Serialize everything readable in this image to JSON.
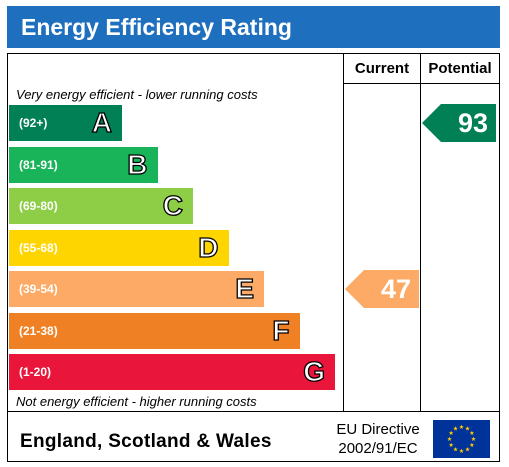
{
  "header": {
    "title": "Energy Efficiency Rating"
  },
  "columns": {
    "current": "Current",
    "potential": "Potential"
  },
  "notes": {
    "top": "Very energy efficient - lower running costs",
    "bottom": "Not energy efficient - higher running costs"
  },
  "chart_data": {
    "type": "bar",
    "bands": [
      {
        "range": "(92+)",
        "letter": "A",
        "color": "#008054"
      },
      {
        "range": "(81-91)",
        "letter": "B",
        "color": "#19b459"
      },
      {
        "range": "(69-80)",
        "letter": "C",
        "color": "#8dce46"
      },
      {
        "range": "(55-68)",
        "letter": "D",
        "color": "#ffd500"
      },
      {
        "range": "(39-54)",
        "letter": "E",
        "color": "#fcaa65"
      },
      {
        "range": "(21-38)",
        "letter": "F",
        "color": "#ef8023"
      },
      {
        "range": "(1-20)",
        "letter": "G",
        "color": "#e9153b"
      }
    ],
    "current": {
      "value": "47",
      "band": "E",
      "color": "#fcaa65"
    },
    "potential": {
      "value": "93",
      "band": "A",
      "color": "#008054"
    }
  },
  "footer": {
    "country": "England, Scotland & Wales",
    "directive_line1": "EU Directive",
    "directive_line2": "2002/91/EC",
    "flag_icon": "eu-flag-icon"
  }
}
